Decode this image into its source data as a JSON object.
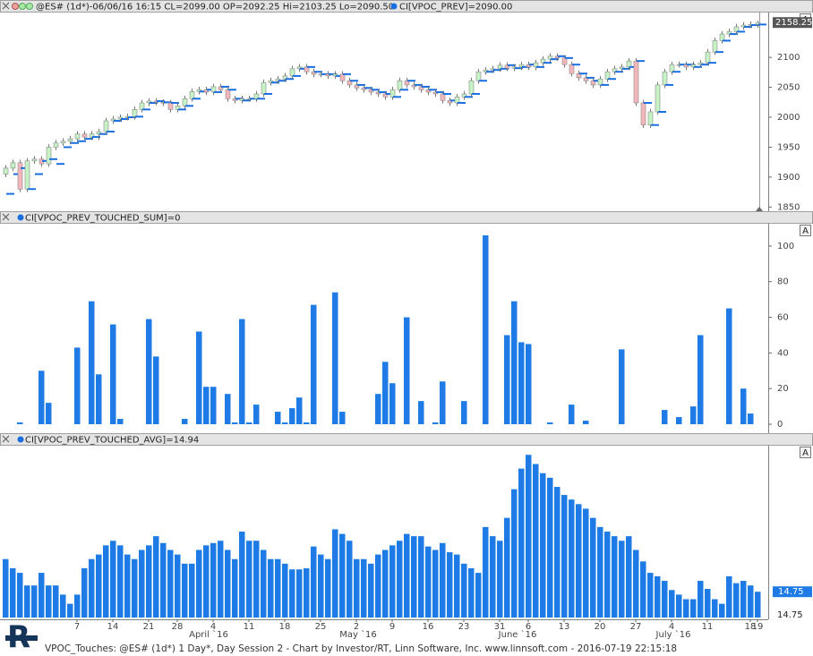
{
  "chart_data": [
    {
      "type": "candlestick",
      "title": "@ES# (1d*)-06/06/16 16:15 CL=2099.00 OP=2092.25 Hi=2103.25 Lo=2090.50",
      "vpoc_label": "CI[VPOC_PREV]=2090.00",
      "scale_button": "A",
      "up_color": "#c6f2c6",
      "down_color": "#f4b6bb",
      "vpoc_color": "#1a6fe0",
      "ylim": [
        1843,
        2175
      ],
      "yticks": [
        1850,
        1900,
        1950,
        2000,
        2050,
        2100
      ],
      "open": [
        1905,
        1915,
        1924,
        1880,
        1927,
        1930,
        1922,
        1950,
        1957,
        1960,
        1964,
        1972,
        1967,
        1972,
        1976,
        1994,
        1997,
        2000,
        2001,
        2013,
        2024,
        2027,
        2025,
        2024,
        2013,
        2019,
        2031,
        2043,
        2046,
        2042,
        2051,
        2046,
        2031,
        2028,
        2031,
        2031,
        2039,
        2058,
        2061,
        2064,
        2069,
        2081,
        2084,
        2076,
        2072,
        2072,
        2069,
        2072,
        2061,
        2054,
        2049,
        2046,
        2042,
        2039,
        2034,
        2046,
        2061,
        2054,
        2051,
        2046,
        2042,
        2039,
        2028,
        2024,
        2034,
        2039,
        2061,
        2076,
        2079,
        2081,
        2087,
        2082,
        2084,
        2088,
        2084,
        2091,
        2097,
        2102,
        2099,
        2088,
        2073,
        2066,
        2061,
        2054,
        2064,
        2076,
        2081,
        2084,
        2094,
        2024,
        1987,
        2009,
        2054,
        2076,
        2088,
        2088,
        2084,
        2088,
        2091,
        2109,
        2128,
        2139,
        2143,
        2151,
        2154,
        2155
      ],
      "high": [
        1920,
        1929,
        1929,
        1932,
        1935,
        1935,
        1955,
        1962,
        1965,
        1969,
        1977,
        1977,
        1977,
        1981,
        1999,
        2002,
        2005,
        2006,
        2018,
        2029,
        2032,
        2032,
        2030,
        2029,
        2024,
        2036,
        2048,
        2051,
        2051,
        2056,
        2056,
        2051,
        2036,
        2036,
        2036,
        2044,
        2063,
        2066,
        2069,
        2074,
        2086,
        2089,
        2089,
        2081,
        2077,
        2077,
        2077,
        2077,
        2066,
        2059,
        2054,
        2051,
        2047,
        2044,
        2051,
        2066,
        2066,
        2059,
        2056,
        2051,
        2047,
        2044,
        2033,
        2039,
        2044,
        2066,
        2081,
        2084,
        2086,
        2092,
        2092,
        2089,
        2093,
        2093,
        2096,
        2102,
        2107,
        2107,
        2104,
        2093,
        2078,
        2071,
        2066,
        2069,
        2081,
        2086,
        2089,
        2099,
        2099,
        2029,
        2014,
        2059,
        2081,
        2093,
        2093,
        2093,
        2093,
        2096,
        2114,
        2133,
        2144,
        2148,
        2156,
        2159,
        2160,
        2161
      ],
      "low": [
        1900,
        1910,
        1875,
        1875,
        1922,
        1917,
        1917,
        1945,
        1952,
        1955,
        1959,
        1962,
        1962,
        1962,
        1971,
        1989,
        1992,
        1995,
        1996,
        2008,
        2019,
        2020,
        2019,
        2008,
        2008,
        2014,
        2026,
        2038,
        2037,
        2037,
        2041,
        2026,
        2023,
        2023,
        2026,
        2026,
        2034,
        2053,
        2056,
        2059,
        2064,
        2076,
        2071,
        2067,
        2067,
        2064,
        2064,
        2056,
        2049,
        2044,
        2041,
        2037,
        2034,
        2029,
        2029,
        2041,
        2049,
        2046,
        2041,
        2037,
        2034,
        2023,
        2019,
        2019,
        2029,
        2034,
        2056,
        2071,
        2074,
        2076,
        2077,
        2077,
        2079,
        2079,
        2079,
        2086,
        2092,
        2094,
        2083,
        2068,
        2061,
        2056,
        2049,
        2049,
        2059,
        2071,
        2076,
        2079,
        2019,
        1982,
        1982,
        2004,
        2049,
        2071,
        2083,
        2079,
        2079,
        2083,
        2086,
        2104,
        2123,
        2134,
        2138,
        2146,
        2149,
        2150
      ],
      "close": [
        1915,
        1924,
        1880,
        1927,
        1930,
        1922,
        1950,
        1957,
        1960,
        1964,
        1972,
        1967,
        1972,
        1976,
        1994,
        1997,
        2000,
        2001,
        2013,
        2024,
        2027,
        2025,
        2024,
        2013,
        2019,
        2031,
        2043,
        2046,
        2042,
        2051,
        2046,
        2031,
        2028,
        2031,
        2031,
        2039,
        2058,
        2061,
        2064,
        2069,
        2081,
        2084,
        2076,
        2072,
        2072,
        2069,
        2072,
        2061,
        2054,
        2049,
        2046,
        2042,
        2039,
        2034,
        2046,
        2061,
        2054,
        2051,
        2046,
        2042,
        2039,
        2028,
        2024,
        2034,
        2039,
        2061,
        2076,
        2079,
        2081,
        2087,
        2082,
        2084,
        2088,
        2084,
        2091,
        2097,
        2102,
        2099,
        2088,
        2073,
        2066,
        2061,
        2054,
        2064,
        2076,
        2081,
        2084,
        2094,
        2024,
        1987,
        2009,
        2054,
        2076,
        2088,
        2088,
        2084,
        2088,
        2091,
        2109,
        2128,
        2139,
        2143,
        2151,
        2154,
        2155,
        2158.25
      ],
      "vpoc": [
        1872,
        1905,
        1915,
        1880,
        1905,
        1927,
        1930,
        1922,
        1950,
        1957,
        1960,
        1964,
        1967,
        1972,
        1976,
        1994,
        1997,
        2000,
        2001,
        2013,
        2024,
        2027,
        2025,
        2024,
        2013,
        2019,
        2031,
        2043,
        2046,
        2042,
        2051,
        2046,
        2031,
        2028,
        2031,
        2031,
        2039,
        2058,
        2061,
        2064,
        2069,
        2081,
        2084,
        2076,
        2072,
        2072,
        2069,
        2072,
        2061,
        2054,
        2049,
        2046,
        2042,
        2039,
        2034,
        2046,
        2061,
        2054,
        2051,
        2046,
        2042,
        2039,
        2028,
        2024,
        2034,
        2039,
        2061,
        2076,
        2079,
        2081,
        2087,
        2082,
        2084,
        2088,
        2084,
        2091,
        2097,
        2102,
        2099,
        2088,
        2073,
        2066,
        2061,
        2054,
        2064,
        2076,
        2081,
        2084,
        2094,
        2024,
        1987,
        2009,
        2054,
        2076,
        2088,
        2088,
        2084,
        2088,
        2091,
        2109,
        2128,
        2139,
        2143,
        2151,
        2154,
        2155
      ]
    },
    {
      "type": "bar",
      "title": "CI[VPOC_PREV_TOUCHED_SUM]=0",
      "scale_button": "A",
      "color": "#1e7be6",
      "ylim": [
        -3,
        112
      ],
      "yticks": [
        0,
        20,
        40,
        60,
        80,
        100
      ],
      "values": [
        0,
        0,
        1,
        0,
        0,
        30,
        12,
        0,
        0,
        0,
        43,
        0,
        69,
        28,
        0,
        56,
        3,
        0,
        0,
        0,
        59,
        38,
        0,
        0,
        0,
        3,
        0,
        52,
        21,
        21,
        0,
        17,
        1,
        59,
        1,
        11,
        0,
        0,
        7,
        1,
        9,
        15,
        1,
        67,
        0,
        0,
        74,
        7,
        0,
        0,
        0,
        0,
        17,
        35,
        23,
        0,
        60,
        0,
        13,
        0,
        1,
        24,
        0,
        0,
        13,
        0,
        0,
        106,
        0,
        0,
        50,
        69,
        46,
        45,
        0,
        0,
        1,
        0,
        0,
        11,
        0,
        2,
        0,
        0,
        0,
        0,
        42,
        0,
        0,
        0,
        0,
        0,
        8,
        0,
        4,
        0,
        10,
        50,
        0,
        0,
        0,
        65,
        0,
        20,
        6,
        0
      ]
    },
    {
      "type": "bar",
      "title": "CI[VPOC_PREV_TOUCHED_AVG]=14.94",
      "scale_button": "A",
      "scale_label": "14.75",
      "color": "#1e7be6",
      "ylim": [
        12.5,
        27.5
      ],
      "values": [
        17.6,
        16.8,
        16.4,
        15.3,
        15.3,
        16.4,
        15.3,
        15.3,
        14.5,
        13.7,
        14.5,
        16.8,
        17.6,
        18.0,
        18.8,
        19.2,
        18.8,
        18.0,
        17.6,
        18.4,
        18.8,
        19.6,
        19.0,
        18.4,
        18.0,
        17.2,
        17.2,
        18.4,
        18.8,
        19.0,
        19.2,
        18.4,
        17.6,
        20.0,
        19.2,
        19.2,
        18.4,
        17.6,
        17.6,
        17.2,
        16.7,
        16.7,
        16.8,
        18.7,
        18.0,
        17.6,
        20.2,
        19.8,
        19.2,
        17.6,
        17.6,
        17.2,
        18.0,
        18.4,
        18.8,
        19.2,
        19.8,
        19.6,
        19.6,
        18.7,
        18.4,
        19.0,
        18.2,
        18.0,
        17.2,
        16.8,
        16.4,
        20.4,
        19.6,
        19.2,
        21.2,
        23.7,
        25.5,
        26.7,
        25.9,
        25.1,
        24.7,
        23.9,
        23.2,
        22.8,
        22.4,
        22.0,
        21.2,
        20.4,
        20.0,
        19.6,
        19.2,
        19.6,
        18.4,
        17.4,
        16.4,
        16.1,
        15.7,
        14.9,
        14.5,
        14.1,
        14.1,
        15.7,
        15.0,
        14.1,
        13.7,
        16.1,
        15.5,
        15.7,
        15.3,
        14.75
      ],
      "categories": [
        null,
        null,
        null,
        null,
        null,
        null,
        null,
        null,
        null,
        null,
        "7",
        null,
        null,
        null,
        null,
        "14",
        null,
        null,
        null,
        null,
        "21",
        null,
        null,
        null,
        "28",
        null,
        null,
        null,
        null,
        "4",
        null,
        null,
        null,
        null,
        "11",
        null,
        null,
        null,
        null,
        "18",
        null,
        null,
        null,
        null,
        "25",
        null,
        null,
        null,
        null,
        "2",
        null,
        null,
        null,
        null,
        "9",
        null,
        null,
        null,
        null,
        "16",
        null,
        null,
        null,
        null,
        "23",
        null,
        null,
        null,
        null,
        "31",
        null,
        null,
        null,
        "6",
        null,
        null,
        null,
        null,
        "13",
        null,
        null,
        null,
        null,
        "20",
        null,
        null,
        null,
        null,
        "27",
        null,
        null,
        null,
        null,
        "4",
        null,
        null,
        null,
        null,
        "11",
        null,
        null,
        null,
        null,
        null,
        "18",
        "19"
      ],
      "months": [
        "April `16",
        "May `16",
        "June `16",
        "July `16"
      ]
    }
  ],
  "logo": "R",
  "footer": "VPOC_Touches: @ES# (1d*) 1 Day*, Day Session 2 - Chart by Investor/RT, Linn Software, Inc. www.linnsoft.com - 2016-07-19 22:15:18"
}
